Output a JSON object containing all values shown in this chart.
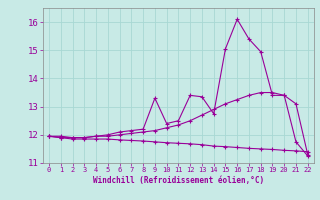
{
  "xlabel": "Windchill (Refroidissement éolien,°C)",
  "xlim": [
    -0.5,
    22.5
  ],
  "ylim": [
    11,
    16.5
  ],
  "yticks": [
    11,
    12,
    13,
    14,
    15,
    16
  ],
  "xticks": [
    0,
    1,
    2,
    3,
    4,
    5,
    6,
    7,
    8,
    9,
    10,
    11,
    12,
    13,
    14,
    15,
    16,
    17,
    18,
    19,
    20,
    21,
    22
  ],
  "background_color": "#c8eae6",
  "grid_color": "#a8d8d4",
  "line_color": "#990099",
  "series": [
    [
      11.95,
      11.95,
      11.9,
      11.9,
      11.95,
      12.0,
      12.1,
      12.15,
      12.2,
      13.3,
      12.4,
      12.5,
      13.4,
      13.35,
      12.75,
      15.05,
      16.1,
      15.4,
      14.95,
      13.4,
      13.4,
      11.75,
      11.25
    ],
    [
      11.95,
      11.9,
      11.9,
      11.9,
      11.95,
      11.95,
      12.0,
      12.05,
      12.1,
      12.15,
      12.25,
      12.35,
      12.5,
      12.7,
      12.9,
      13.1,
      13.25,
      13.4,
      13.5,
      13.5,
      13.4,
      13.1,
      11.3
    ],
    [
      11.95,
      11.9,
      11.85,
      11.85,
      11.85,
      11.85,
      11.82,
      11.8,
      11.78,
      11.75,
      11.72,
      11.7,
      11.68,
      11.65,
      11.6,
      11.58,
      11.55,
      11.52,
      11.5,
      11.48,
      11.45,
      11.43,
      11.4
    ]
  ]
}
